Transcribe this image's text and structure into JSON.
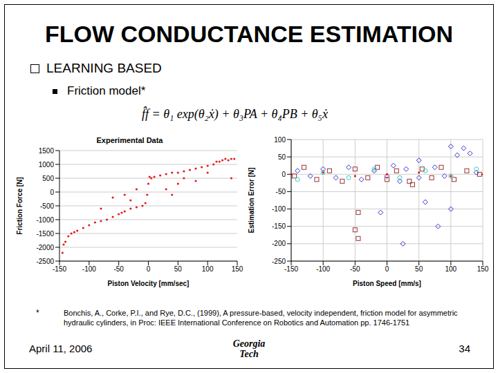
{
  "slide": {
    "title": "FLOW CONDUCTANCE ESTIMATION",
    "bullet": "LEARNING BASED",
    "sub_bullet": "Friction model*",
    "formula": "f̂f = θ₁ exp(θ₂ẋ) + θ₃PA + θ₄PB + θ₅ẋ",
    "footnote_mark": "*",
    "footnote": "Bonchis, A., Corke, P.I., and Rye, D.C., (1999), A pressure-based, velocity independent, friction model for asymmetric hydraulic cylinders, in Proc: IEEE International Conference on Robotics and Automation pp. 1746-1751",
    "date": "April 11, 2006",
    "logo": [
      "Georgia",
      "Tech"
    ],
    "page": "34"
  },
  "chart_data": [
    {
      "type": "scatter",
      "title": "Experimental Data",
      "x_label": "Piston Velocity [mm/sec]",
      "y_label": "Friction Force [N]",
      "xlim": [
        -150,
        150
      ],
      "xticks": [
        -150,
        -100,
        -50,
        0,
        50,
        100,
        150
      ],
      "ylim": [
        -2500,
        1500
      ],
      "yticks": [
        -2500,
        -2000,
        -1500,
        -1000,
        -500,
        0,
        500,
        1000,
        1500
      ],
      "grid": "y",
      "series": [
        {
          "color": "#e31a1c",
          "marker": "dot",
          "x": [
            -145,
            -143,
            -140,
            -135,
            -130,
            -125,
            -120,
            -110,
            -100,
            -90,
            -80,
            -70,
            -60,
            -50,
            -45,
            -40,
            -30,
            -20,
            -10,
            -5,
            -2,
            0,
            2,
            5,
            10,
            20,
            30,
            40,
            50,
            60,
            70,
            80,
            90,
            100,
            110,
            115,
            120,
            125,
            130,
            135,
            140,
            145,
            -60,
            -40,
            -30,
            -80,
            50,
            60,
            30,
            40,
            80,
            100,
            140,
            -20
          ],
          "y": [
            -2200,
            -1900,
            -1800,
            -1600,
            -1500,
            -1450,
            -1400,
            -1300,
            -1200,
            -1100,
            -1050,
            -1000,
            -900,
            -800,
            -750,
            -700,
            -600,
            -550,
            -500,
            -400,
            -100,
            300,
            550,
            500,
            550,
            600,
            650,
            700,
            700,
            750,
            800,
            850,
            900,
            950,
            1000,
            1100,
            1100,
            1150,
            1200,
            1150,
            1200,
            1200,
            -200,
            -100,
            -300,
            -600,
            300,
            500,
            100,
            -100,
            400,
            700,
            500,
            100
          ]
        }
      ]
    },
    {
      "type": "scatter",
      "x_label": "Piston Speed [mm/s]",
      "y_label": "Estimation Error [N]",
      "xlim": [
        -150,
        150
      ],
      "xticks": [
        -150,
        -100,
        -50,
        0,
        50,
        100,
        150
      ],
      "ylim": [
        -250,
        100
      ],
      "yticks": [
        -250,
        -200,
        -150,
        -100,
        -50,
        0,
        50,
        100
      ],
      "grid": true,
      "series": [
        {
          "color": "#3333cc",
          "marker": "diamond",
          "x": [
            -140,
            -120,
            -100,
            -80,
            -60,
            -40,
            -20,
            -10,
            0,
            10,
            20,
            25,
            30,
            50,
            60,
            75,
            80,
            90,
            100,
            110,
            120,
            130,
            140,
            100,
            50
          ],
          "y": [
            10,
            -5,
            15,
            -10,
            20,
            -15,
            10,
            -110,
            -5,
            25,
            -20,
            -200,
            15,
            -10,
            -80,
            20,
            -150,
            -5,
            -100,
            55,
            75,
            60,
            5,
            80,
            40
          ]
        },
        {
          "color": "#993333",
          "marker": "square",
          "x": [
            -145,
            -130,
            -110,
            -90,
            -70,
            -50,
            -45,
            -30,
            -15,
            0,
            15,
            35,
            55,
            70,
            85,
            105,
            125,
            145,
            -50,
            -45,
            40
          ],
          "y": [
            -5,
            20,
            -15,
            10,
            -20,
            15,
            -110,
            -10,
            20,
            -15,
            10,
            -20,
            15,
            -10,
            20,
            -15,
            10,
            0,
            -160,
            -185,
            -30
          ]
        },
        {
          "color": "#33cccc",
          "marker": "circle",
          "x": [
            -140,
            -100,
            -60,
            -20,
            20,
            60,
            100,
            140
          ],
          "y": [
            -15,
            5,
            -10,
            15,
            -10,
            10,
            -5,
            15
          ]
        },
        {
          "color": "#ff0000",
          "marker": "dot",
          "x": [
            -150,
            -100,
            -50,
            0,
            50,
            100,
            150
          ],
          "y": [
            0,
            5,
            -5,
            0,
            5,
            -5,
            0
          ]
        }
      ]
    }
  ]
}
